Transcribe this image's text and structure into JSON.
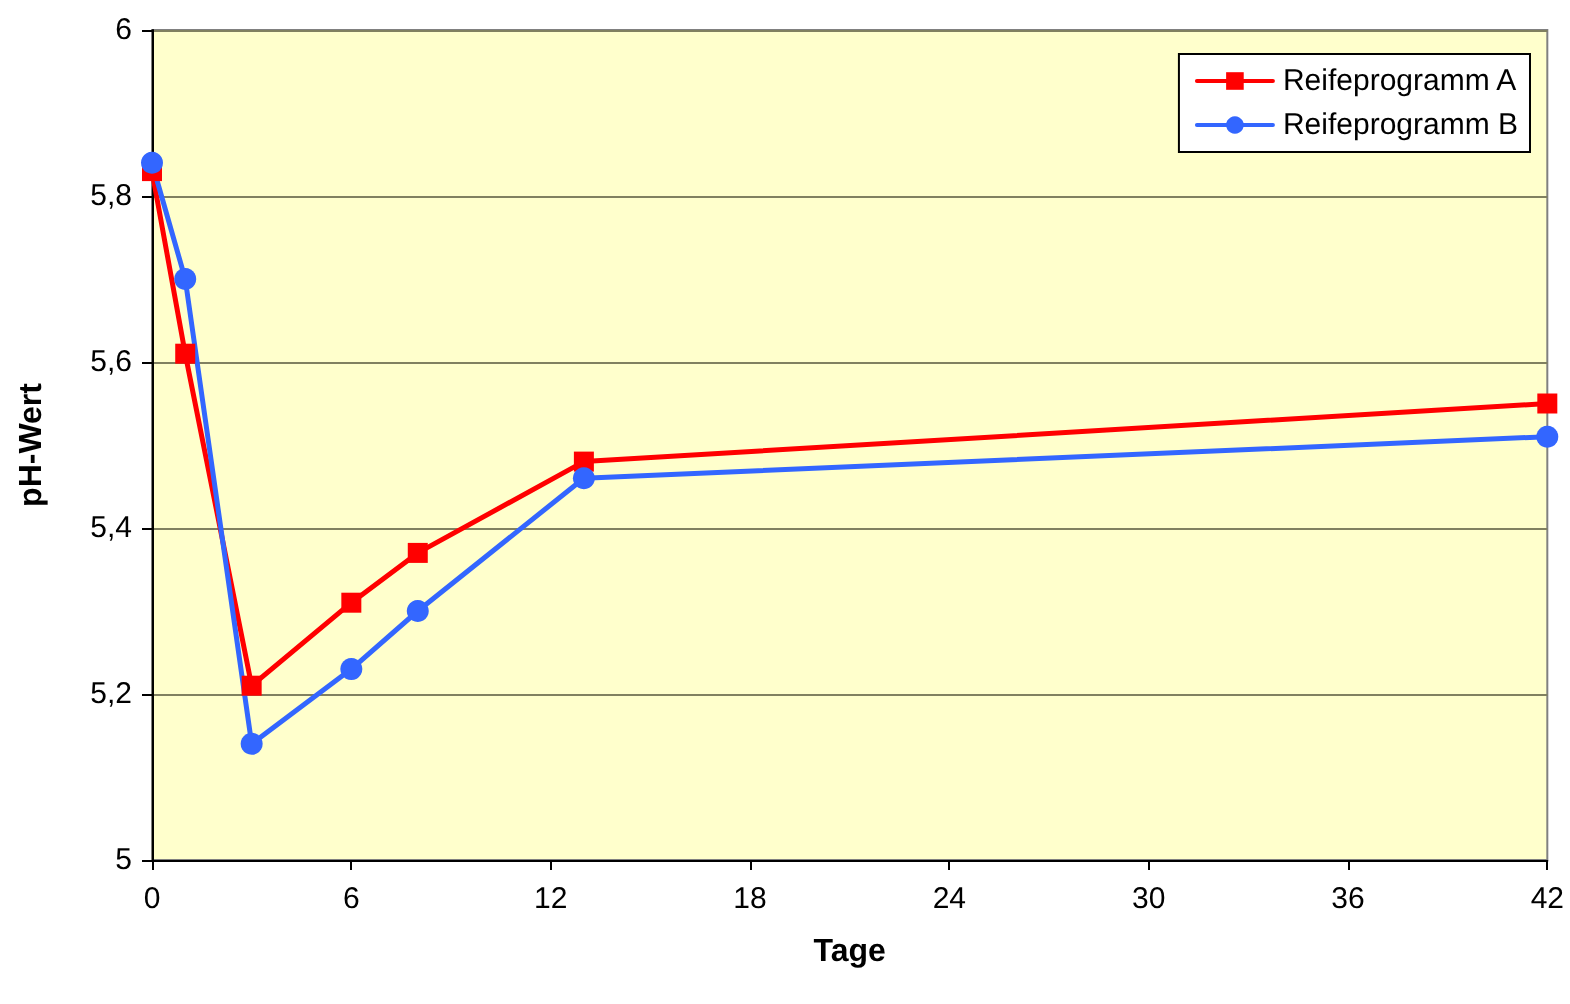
{
  "chart_data": {
    "type": "line",
    "xlabel": "Tage",
    "ylabel": "pH-Wert",
    "x": [
      0,
      1,
      3,
      6,
      8,
      13,
      42
    ],
    "series": [
      {
        "name": "Reifeprogramm A",
        "color": "#ff0000",
        "marker": "square",
        "values": [
          5.83,
          5.61,
          5.21,
          5.31,
          5.37,
          5.48,
          5.55
        ]
      },
      {
        "name": "Reifeprogramm B",
        "color": "#3366ff",
        "marker": "circle",
        "values": [
          5.84,
          5.7,
          5.14,
          5.23,
          5.3,
          5.46,
          5.51
        ]
      }
    ],
    "xlim": [
      0,
      42
    ],
    "xticks": [
      0,
      6,
      12,
      18,
      24,
      30,
      36,
      42
    ],
    "ylim": [
      5,
      6
    ],
    "yticks": [
      5,
      {
        "value": 5.2,
        "label": "5,2"
      },
      {
        "value": 5.4,
        "label": "5,4"
      },
      {
        "value": 5.6,
        "label": "5,6"
      },
      {
        "value": 5.8,
        "label": "5,8"
      },
      6
    ],
    "grid": "y",
    "legend": "top right",
    "line_style": "solid"
  }
}
